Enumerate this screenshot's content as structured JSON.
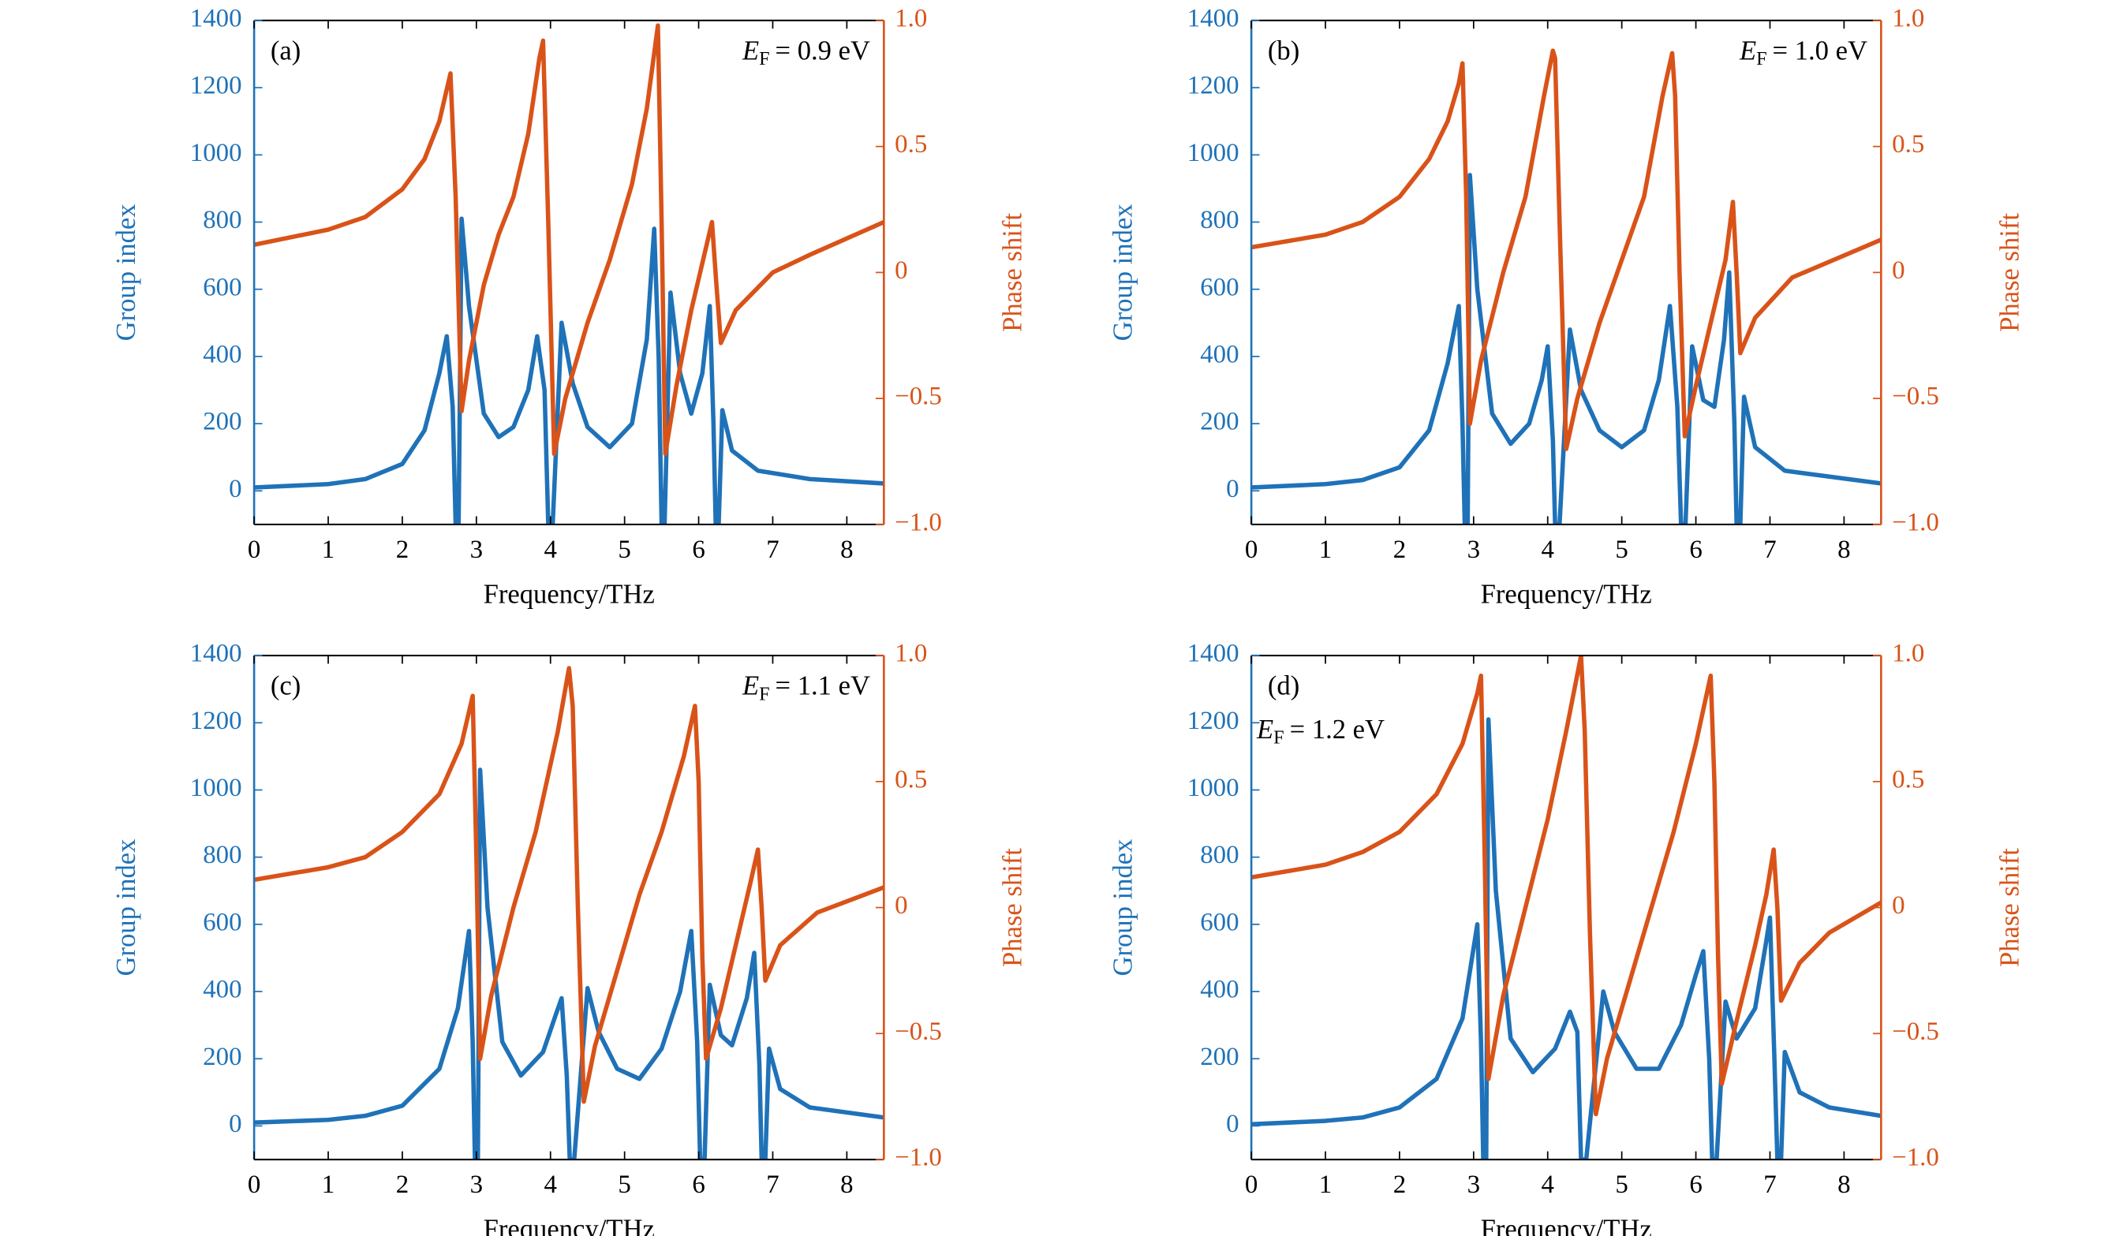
{
  "chart_data": [
    {
      "type": "line",
      "panel_label": "(a)",
      "annotation": {
        "symbol": "E",
        "subscript": "F",
        "text": "= 0.9 eV"
      },
      "x_label": "Frequency/THz",
      "y_label": "Group index",
      "y2_label": "Phase shift",
      "xlim": [
        0,
        8.5
      ],
      "xticks": [
        0,
        1,
        2,
        3,
        4,
        5,
        6,
        7,
        8
      ],
      "ylim": [
        -100,
        1400
      ],
      "yticks": [
        0,
        200,
        400,
        600,
        800,
        1000,
        1200,
        1400
      ],
      "y2lim": [
        -1,
        1
      ],
      "y2ticks": [
        {
          "value": 1,
          "label": "1.0"
        },
        0.5,
        0,
        {
          "value": -0.5,
          "label": "−0.5"
        },
        {
          "value": -1,
          "label": "−1.0"
        }
      ],
      "series": [
        {
          "color": "#1f72b8",
          "x": [
            0,
            1,
            1.5,
            2,
            2.3,
            2.5,
            2.6,
            2.68,
            2.72,
            2.76,
            2.8,
            2.9,
            3.1,
            3.3,
            3.5,
            3.7,
            3.82,
            3.92,
            3.97,
            4.03,
            4.15,
            4.3,
            4.5,
            4.8,
            5.1,
            5.3,
            5.4,
            5.46,
            5.5,
            5.54,
            5.62,
            5.75,
            5.9,
            6.05,
            6.15,
            6.2,
            6.23,
            6.27,
            6.32,
            6.45,
            6.8,
            7.5,
            8.5
          ],
          "values": [
            10,
            20,
            35,
            80,
            180,
            350,
            460,
            250,
            -100,
            -100,
            810,
            550,
            230,
            160,
            190,
            300,
            460,
            300,
            -100,
            -100,
            500,
            320,
            190,
            130,
            200,
            450,
            780,
            400,
            -100,
            -100,
            590,
            350,
            230,
            350,
            550,
            200,
            -100,
            -100,
            240,
            120,
            60,
            35,
            22
          ]
        },
        {
          "color": "#d95319",
          "axis": "y2",
          "x": [
            0,
            1,
            1.5,
            2,
            2.3,
            2.5,
            2.65,
            2.72,
            2.8,
            2.9,
            3.1,
            3.3,
            3.5,
            3.7,
            3.85,
            3.9,
            3.97,
            4.05,
            4.2,
            4.5,
            4.8,
            5.1,
            5.3,
            5.45,
            5.5,
            5.55,
            5.7,
            5.9,
            6.1,
            6.18,
            6.24,
            6.3,
            6.5,
            7,
            7.5,
            8.5
          ],
          "values": [
            0.11,
            0.17,
            0.22,
            0.33,
            0.45,
            0.6,
            0.79,
            0.3,
            -0.55,
            -0.35,
            -0.05,
            0.15,
            0.3,
            0.55,
            0.85,
            0.92,
            0.2,
            -0.72,
            -0.5,
            -0.2,
            0.05,
            0.35,
            0.65,
            0.98,
            0.2,
            -0.72,
            -0.45,
            -0.15,
            0.1,
            0.2,
            -0.05,
            -0.28,
            -0.15,
            0,
            0.07,
            0.2
          ]
        }
      ]
    },
    {
      "type": "line",
      "panel_label": "(b)",
      "annotation": {
        "symbol": "E",
        "subscript": "F",
        "text": "= 1.0 eV"
      },
      "x_label": "Frequency/THz",
      "y_label": "Group index",
      "y2_label": "Phase shift",
      "xlim": [
        0,
        8.5
      ],
      "xticks": [
        0,
        1,
        2,
        3,
        4,
        5,
        6,
        7,
        8
      ],
      "ylim": [
        -100,
        1400
      ],
      "yticks": [
        0,
        200,
        400,
        600,
        800,
        1000,
        1200,
        1400
      ],
      "y2lim": [
        -1,
        1
      ],
      "y2ticks": [
        {
          "value": 1,
          "label": "1.0"
        },
        0.5,
        0,
        {
          "value": -0.5,
          "label": "−0.5"
        },
        {
          "value": -1,
          "label": "−1.0"
        }
      ],
      "series": [
        {
          "color": "#1f72b8",
          "x": [
            0,
            1,
            1.5,
            2,
            2.4,
            2.65,
            2.8,
            2.85,
            2.88,
            2.92,
            2.95,
            3.05,
            3.25,
            3.5,
            3.75,
            3.92,
            4.0,
            4.07,
            4.1,
            4.16,
            4.3,
            4.45,
            4.7,
            5.0,
            5.3,
            5.5,
            5.65,
            5.75,
            5.8,
            5.86,
            5.95,
            6.1,
            6.25,
            6.38,
            6.45,
            6.52,
            6.55,
            6.6,
            6.65,
            6.8,
            7.2,
            8.5
          ],
          "values": [
            10,
            20,
            32,
            70,
            180,
            380,
            550,
            200,
            -100,
            -100,
            940,
            600,
            230,
            140,
            200,
            330,
            430,
            150,
            -100,
            -100,
            480,
            300,
            180,
            130,
            180,
            330,
            550,
            250,
            -100,
            -100,
            430,
            270,
            250,
            450,
            650,
            200,
            -100,
            -100,
            280,
            130,
            60,
            22
          ]
        },
        {
          "color": "#d95319",
          "axis": "y2",
          "x": [
            0,
            1,
            1.5,
            2,
            2.4,
            2.65,
            2.8,
            2.85,
            2.9,
            2.95,
            3.1,
            3.4,
            3.7,
            3.95,
            4.07,
            4.1,
            4.17,
            4.25,
            4.4,
            4.7,
            5.0,
            5.3,
            5.55,
            5.68,
            5.72,
            5.78,
            5.85,
            6.0,
            6.2,
            6.4,
            6.5,
            6.55,
            6.6,
            6.8,
            7.3,
            8.5
          ],
          "values": [
            0.1,
            0.15,
            0.2,
            0.3,
            0.45,
            0.6,
            0.75,
            0.83,
            0.3,
            -0.6,
            -0.35,
            0,
            0.3,
            0.7,
            0.88,
            0.85,
            0.1,
            -0.7,
            -0.5,
            -0.2,
            0.05,
            0.3,
            0.7,
            0.87,
            0.7,
            0,
            -0.65,
            -0.45,
            -0.2,
            0.05,
            0.28,
            0,
            -0.32,
            -0.18,
            -0.02,
            0.13
          ]
        }
      ]
    },
    {
      "type": "line",
      "panel_label": "(c)",
      "annotation": {
        "symbol": "E",
        "subscript": "F",
        "text": "= 1.1 eV"
      },
      "x_label": "Frequency/THz",
      "y_label": "Group index",
      "y2_label": "Phase shift",
      "xlim": [
        0,
        8.5
      ],
      "xticks": [
        0,
        1,
        2,
        3,
        4,
        5,
        6,
        7,
        8
      ],
      "ylim": [
        -100,
        1400
      ],
      "yticks": [
        0,
        200,
        400,
        600,
        800,
        1000,
        1200,
        1400
      ],
      "y2lim": [
        -1,
        1
      ],
      "y2ticks": [
        {
          "value": 1,
          "label": "1.0"
        },
        0.5,
        0,
        {
          "value": -0.5,
          "label": "−0.5"
        },
        {
          "value": -1,
          "label": "−1.0"
        }
      ],
      "series": [
        {
          "color": "#1f72b8",
          "x": [
            0,
            1,
            1.5,
            2,
            2.5,
            2.75,
            2.9,
            2.95,
            2.98,
            3.02,
            3.05,
            3.15,
            3.35,
            3.6,
            3.9,
            4.07,
            4.15,
            4.22,
            4.26,
            4.32,
            4.5,
            4.65,
            4.9,
            5.2,
            5.5,
            5.75,
            5.9,
            5.98,
            6.02,
            6.08,
            6.15,
            6.3,
            6.45,
            6.65,
            6.75,
            6.82,
            6.85,
            6.9,
            6.95,
            7.1,
            7.5,
            8.5
          ],
          "values": [
            10,
            18,
            30,
            60,
            170,
            350,
            580,
            250,
            -100,
            -100,
            1060,
            650,
            250,
            150,
            220,
            330,
            380,
            150,
            -100,
            -100,
            410,
            280,
            170,
            140,
            230,
            400,
            580,
            250,
            -100,
            -100,
            420,
            270,
            240,
            380,
            515,
            180,
            -100,
            -100,
            230,
            110,
            55,
            25
          ]
        },
        {
          "color": "#d95319",
          "axis": "y2",
          "x": [
            0,
            1,
            1.5,
            2,
            2.5,
            2.8,
            2.95,
            3.0,
            3.05,
            3.2,
            3.5,
            3.8,
            4.1,
            4.25,
            4.3,
            4.37,
            4.45,
            4.6,
            4.9,
            5.2,
            5.5,
            5.8,
            5.95,
            6.0,
            6.05,
            6.1,
            6.3,
            6.5,
            6.7,
            6.8,
            6.85,
            6.9,
            7.1,
            7.6,
            8.5
          ],
          "values": [
            0.11,
            0.16,
            0.2,
            0.3,
            0.45,
            0.65,
            0.84,
            0.2,
            -0.6,
            -0.35,
            0,
            0.3,
            0.7,
            0.95,
            0.8,
            0,
            -0.77,
            -0.55,
            -0.25,
            0.05,
            0.3,
            0.6,
            0.8,
            0.5,
            -0.2,
            -0.6,
            -0.4,
            -0.15,
            0.1,
            0.23,
            0,
            -0.29,
            -0.15,
            -0.02,
            0.08
          ]
        }
      ]
    },
    {
      "type": "line",
      "panel_label": "(d)",
      "annotation": {
        "symbol": "E",
        "subscript": "F",
        "text": "= 1.2 eV"
      },
      "x_label": "Frequency/THz",
      "y_label": "Group index",
      "y2_label": "Phase shift",
      "xlim": [
        0,
        8.5
      ],
      "xticks": [
        0,
        1,
        2,
        3,
        4,
        5,
        6,
        7,
        8
      ],
      "ylim": [
        -100,
        1400
      ],
      "yticks": [
        0,
        200,
        400,
        600,
        800,
        1000,
        1200,
        1400
      ],
      "y2lim": [
        -1,
        1
      ],
      "y2ticks": [
        {
          "value": 1,
          "label": "1.0"
        },
        0.5,
        0,
        {
          "value": -0.5,
          "label": "−0.5"
        },
        {
          "value": -1,
          "label": "−1.0"
        }
      ],
      "series": [
        {
          "color": "#1f72b8",
          "x": [
            0,
            1,
            1.5,
            2,
            2.5,
            2.85,
            3.05,
            3.1,
            3.13,
            3.17,
            3.2,
            3.3,
            3.5,
            3.8,
            4.1,
            4.3,
            4.4,
            4.45,
            4.52,
            4.75,
            4.9,
            5.2,
            5.5,
            5.8,
            6.0,
            6.1,
            6.18,
            6.22,
            6.28,
            6.4,
            6.55,
            6.8,
            6.95,
            7.0,
            7.06,
            7.1,
            7.15,
            7.2,
            7.4,
            7.8,
            8.5
          ],
          "values": [
            5,
            15,
            25,
            55,
            140,
            320,
            600,
            250,
            -100,
            -100,
            1210,
            700,
            260,
            160,
            230,
            340,
            280,
            -100,
            -100,
            400,
            280,
            170,
            170,
            300,
            450,
            520,
            200,
            -100,
            -100,
            370,
            260,
            350,
            550,
            620,
            200,
            -100,
            -100,
            220,
            100,
            55,
            30
          ]
        },
        {
          "color": "#d95319",
          "axis": "y2",
          "x": [
            0,
            1,
            1.5,
            2,
            2.5,
            2.85,
            3.05,
            3.1,
            3.15,
            3.2,
            3.4,
            3.7,
            4.0,
            4.25,
            4.45,
            4.5,
            4.57,
            4.65,
            4.8,
            5.1,
            5.4,
            5.7,
            6.0,
            6.2,
            6.25,
            6.3,
            6.35,
            6.55,
            6.8,
            6.95,
            7.05,
            7.1,
            7.15,
            7.4,
            7.8,
            8.5
          ],
          "values": [
            0.12,
            0.17,
            0.22,
            0.3,
            0.45,
            0.65,
            0.85,
            0.92,
            0.2,
            -0.68,
            -0.35,
            0,
            0.35,
            0.7,
            1.0,
            0.7,
            -0.1,
            -0.82,
            -0.6,
            -0.3,
            0,
            0.3,
            0.65,
            0.92,
            0.5,
            -0.2,
            -0.7,
            -0.45,
            -0.15,
            0.05,
            0.23,
            0,
            -0.37,
            -0.22,
            -0.1,
            0.02
          ]
        }
      ]
    }
  ]
}
